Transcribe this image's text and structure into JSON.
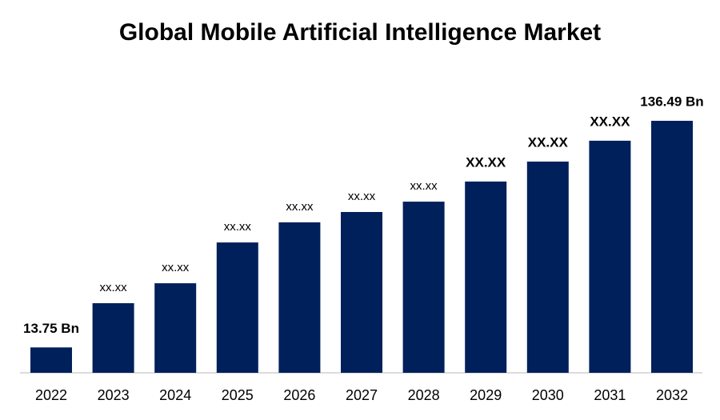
{
  "chart_data": {
    "type": "bar",
    "title": "Global Mobile Artificial Intelligence Market",
    "categories": [
      "2022",
      "2023",
      "2024",
      "2025",
      "2026",
      "2027",
      "2028",
      "2029",
      "2030",
      "2031",
      "2032"
    ],
    "values": [
      13.75,
      37.7,
      48.5,
      70.6,
      81.5,
      87.1,
      92.7,
      103.6,
      114.4,
      125.7,
      136.49
    ],
    "value_labels": [
      "13.75 Bn",
      "xx.xx",
      "xx.xx",
      "xx.xx",
      "xx.xx",
      "xx.xx",
      "xx.xx",
      "XX.XX",
      "XX.XX",
      "XX.XX",
      "136.49 Bn"
    ],
    "color": "#00205b"
  }
}
